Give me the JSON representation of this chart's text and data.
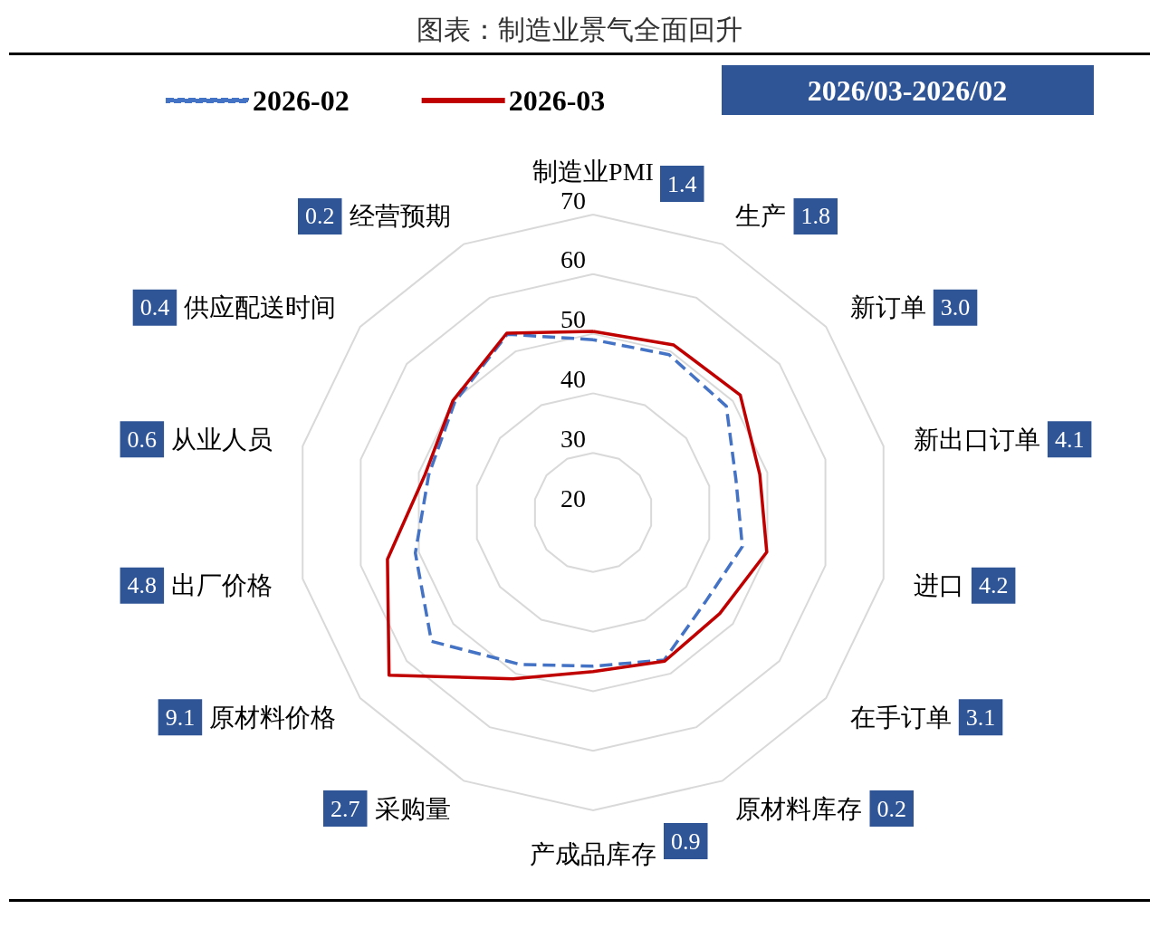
{
  "chart_data": {
    "type": "radar",
    "title": "图表：制造业景气全面回升",
    "categories": [
      "制造业PMI",
      "生产",
      "新订单",
      "新出口订单",
      "进口",
      "在手订单",
      "原材料库存",
      "产成品库存",
      "采购量",
      "原材料价格",
      "出厂价格",
      "从业人员",
      "供应配送时间",
      "经营预期"
    ],
    "series": [
      {
        "name": "2026-02",
        "color": "#4472c4",
        "line_style": "dashed",
        "values": [
          49.0,
          49.4,
          48.6,
          44.6,
          45.7,
          44.1,
          47.5,
          45.8,
          48.3,
          54.7,
          50.6,
          48.3,
          49.7,
          53.2
        ]
      },
      {
        "name": "2026-03",
        "color": "#c00000",
        "line_style": "solid",
        "values": [
          50.4,
          51.2,
          51.6,
          48.7,
          49.9,
          47.2,
          47.7,
          46.7,
          51.0,
          63.8,
          55.4,
          48.9,
          50.1,
          53.4
        ]
      }
    ],
    "annotations": [
      "2026/03-2026/02",
      "1.4",
      "1.8",
      "3.0",
      "4.1",
      "4.2",
      "3.1",
      "0.2",
      "0.9",
      "2.7",
      "9.1",
      "4.8",
      "0.6",
      "0.4",
      "0.2"
    ],
    "ylim": [
      20,
      70
    ],
    "yticks": [
      20,
      30,
      40,
      50,
      60,
      70
    ],
    "grid": true,
    "legend": "top left",
    "marker": "none"
  }
}
